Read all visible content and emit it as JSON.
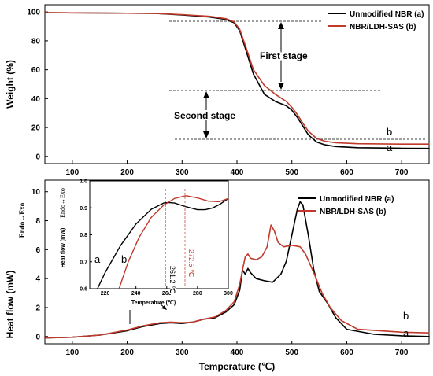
{
  "colors": {
    "unmodified": "#000000",
    "ldh": "#c0392b",
    "arrow": "#000000"
  },
  "chart_data": [
    {
      "type": "line",
      "panel": "TGA",
      "ylabel": "Weight (%)",
      "xlim": [
        50,
        750
      ],
      "ylim": [
        -5,
        105
      ],
      "x_ticks": [
        100,
        200,
        300,
        400,
        500,
        600,
        700
      ],
      "y_ticks": [
        0,
        20,
        40,
        60,
        80,
        100
      ],
      "legend": [
        "Unmodified NBR (a)",
        "NBR/LDH-SAS  (b)"
      ],
      "legend_position": "top-right",
      "annotations": [
        "First stage",
        "Second stage"
      ],
      "series_letters": [
        "a",
        "b"
      ],
      "series": [
        {
          "name": "Unmodified NBR (a)",
          "x": [
            50,
            150,
            250,
            300,
            350,
            380,
            395,
            405,
            415,
            430,
            450,
            470,
            490,
            500,
            510,
            520,
            530,
            545,
            560,
            580,
            620,
            700,
            750
          ],
          "y": [
            99.5,
            99.3,
            99,
            98,
            96.5,
            94.8,
            92.5,
            87,
            75,
            57,
            43,
            38,
            35,
            32,
            27,
            21,
            15,
            10,
            8,
            6.8,
            6,
            5.6,
            5.5
          ]
        },
        {
          "name": "NBR/LDH-SAS  (b)",
          "x": [
            50,
            150,
            250,
            300,
            350,
            380,
            395,
            405,
            415,
            430,
            450,
            470,
            490,
            500,
            510,
            520,
            530,
            545,
            560,
            580,
            620,
            700,
            750
          ],
          "y": [
            99.5,
            99.3,
            99,
            98.2,
            97,
            95.3,
            93,
            88,
            77,
            60,
            49,
            43,
            38,
            34,
            29,
            23,
            17.5,
            12.5,
            10.5,
            9.5,
            8.8,
            8.5,
            8.5
          ]
        }
      ]
    },
    {
      "type": "line",
      "panel": "DSC",
      "xlabel": "Temperature (℃)",
      "ylabel": "Heat flow (mW)",
      "ylabel_extra": "Endo↔Exo",
      "xlim": [
        50,
        750
      ],
      "ylim": [
        -0.5,
        10.8
      ],
      "x_ticks": [
        100,
        200,
        300,
        400,
        500,
        600,
        700
      ],
      "y_ticks": [
        0,
        2,
        4,
        6,
        8,
        10
      ],
      "legend": [
        "Unmodified NBR (a)",
        "NBR/LDH-SAS  (b)"
      ],
      "legend_position": "top-right",
      "series_letters": [
        "a",
        "b"
      ],
      "series": [
        {
          "name": "Unmodified NBR (a)",
          "x": [
            50,
            100,
            150,
            200,
            230,
            260,
            280,
            300,
            320,
            340,
            360,
            380,
            395,
            405,
            410,
            415,
            420,
            425,
            435,
            450,
            465,
            480,
            490,
            500,
            510,
            515,
            520,
            530,
            540,
            550,
            565,
            580,
            600,
            650,
            700,
            750
          ],
          "y": [
            -0.1,
            -0.05,
            0.1,
            0.4,
            0.7,
            0.9,
            0.95,
            0.9,
            1.0,
            1.2,
            1.3,
            1.7,
            2.2,
            3.2,
            4.6,
            4.3,
            4.7,
            4.4,
            4.0,
            3.85,
            3.75,
            4.3,
            5.2,
            7.0,
            8.8,
            9.3,
            9.1,
            7.0,
            4.6,
            3.1,
            2.3,
            1.3,
            0.5,
            0.15,
            0.05,
            0.0
          ]
        },
        {
          "name": "NBR/LDH-SAS  (b)",
          "x": [
            50,
            100,
            150,
            200,
            230,
            260,
            280,
            300,
            320,
            340,
            360,
            380,
            395,
            405,
            410,
            415,
            420,
            425,
            435,
            445,
            455,
            462,
            468,
            475,
            485,
            500,
            515,
            525,
            540,
            555,
            570,
            590,
            620,
            700,
            750
          ],
          "y": [
            -0.1,
            -0.05,
            0.1,
            0.45,
            0.75,
            0.95,
            1.0,
            0.95,
            1.0,
            1.2,
            1.35,
            1.8,
            2.4,
            3.6,
            4.6,
            5.5,
            5.7,
            5.4,
            5.3,
            5.5,
            6.2,
            7.7,
            7.3,
            6.5,
            6.2,
            6.3,
            6.2,
            5.7,
            4.4,
            3.0,
            2.0,
            1.1,
            0.5,
            0.3,
            0.25
          ]
        }
      ]
    },
    {
      "type": "line",
      "panel": "DSC inset",
      "xlabel": "Temperature (℃)",
      "ylabel": "Heat flow (mW)",
      "ylabel_extra": "Endo↔Exo",
      "xlim": [
        210,
        300
      ],
      "ylim": [
        0.6,
        1.0
      ],
      "x_ticks": [
        220,
        240,
        260,
        280,
        300
      ],
      "y_ticks": [
        0.6,
        0.7,
        0.8,
        0.9,
        1.0
      ],
      "peak_labels": [
        "261.2 ℃",
        "272.5 ℃"
      ],
      "series_letters": [
        "a",
        "b"
      ],
      "series": [
        {
          "name": "Unmodified NBR (a)",
          "x": [
            215,
            220,
            230,
            240,
            250,
            258,
            261,
            265,
            272,
            280,
            285,
            290,
            295,
            300
          ],
          "y": [
            0.6,
            0.66,
            0.76,
            0.84,
            0.895,
            0.918,
            0.92,
            0.918,
            0.905,
            0.893,
            0.893,
            0.9,
            0.915,
            0.935
          ]
        },
        {
          "name": "NBR/LDH-SAS  (b)",
          "x": [
            229,
            235,
            242,
            250,
            258,
            265,
            272.5,
            280,
            287,
            294,
            300
          ],
          "y": [
            0.6,
            0.7,
            0.79,
            0.865,
            0.91,
            0.935,
            0.945,
            0.937,
            0.925,
            0.923,
            0.935
          ]
        }
      ]
    }
  ]
}
